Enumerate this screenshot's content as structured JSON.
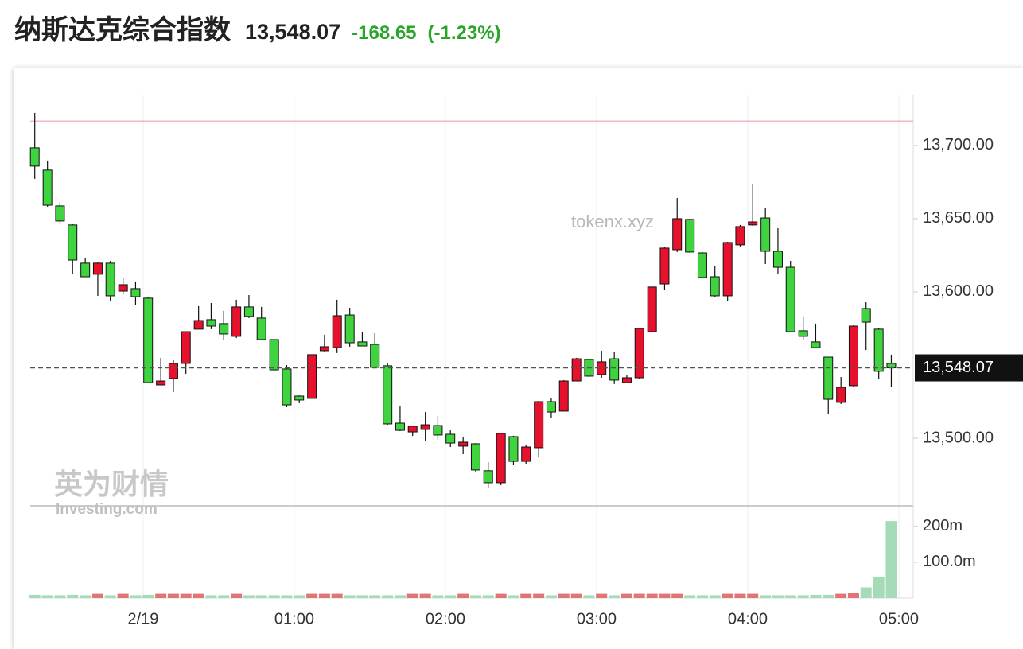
{
  "header": {
    "title": "纳斯达克综合指数",
    "change": "-168.65",
    "change_pct": "(-1.23%)"
  },
  "chart_data": {
    "type": "candlestick",
    "watermarks": [
      "tokenx.xyz",
      "英为财情",
      "Investing.com"
    ],
    "up_color": "#e8112d",
    "down_color": "#3fd33f",
    "volume_up_color": "#e07575",
    "volume_down_color": "#a6dbb8",
    "last": {
      "value": 13548.07,
      "label": "13,548.07"
    },
    "reference_line": 13716.72,
    "reference_color": "#f2a0a8",
    "xlim": [
      -0.747,
      5.095
    ],
    "xticks": [
      {
        "value": 0,
        "label": "2/19"
      },
      {
        "value": 1,
        "label": "01:00"
      },
      {
        "value": 2,
        "label": "02:00"
      },
      {
        "value": 3,
        "label": "03:00"
      },
      {
        "value": 4,
        "label": "04:00"
      },
      {
        "value": 5,
        "label": "05:00"
      }
    ],
    "ylim": [
      13453.8,
      13734.2
    ],
    "yticks": [
      {
        "value": 13500,
        "label": "13,500.00"
      },
      {
        "value": 13600,
        "label": "13,600.00"
      },
      {
        "value": 13650,
        "label": "13,650.00"
      },
      {
        "value": 13700,
        "label": "13,700.00"
      }
    ],
    "volume_ylim": [
      0,
      253000000
    ],
    "volume_ticks": [
      {
        "value": 100000000,
        "label": "100.0m"
      },
      {
        "value": 200000000,
        "label": "200m"
      }
    ],
    "x": [
      -0.717,
      -0.633,
      -0.55,
      -0.467,
      -0.383,
      -0.3,
      -0.217,
      -0.133,
      -0.05,
      0.033,
      0.117,
      0.2,
      0.283,
      0.367,
      0.45,
      0.533,
      0.617,
      0.7,
      0.783,
      0.867,
      0.95,
      1.033,
      1.117,
      1.2,
      1.283,
      1.367,
      1.45,
      1.533,
      1.617,
      1.7,
      1.783,
      1.867,
      1.95,
      2.033,
      2.117,
      2.2,
      2.283,
      2.367,
      2.45,
      2.533,
      2.617,
      2.7,
      2.783,
      2.867,
      2.95,
      3.033,
      3.117,
      3.2,
      3.283,
      3.367,
      3.45,
      3.533,
      3.617,
      3.7,
      3.783,
      3.867,
      3.95,
      4.033,
      4.117,
      4.2,
      4.283,
      4.367,
      4.45,
      4.533,
      4.617,
      4.7,
      4.783,
      4.867,
      4.95
    ],
    "open": [
      13698.4,
      13683.2,
      13658.7,
      13645.7,
      13619.6,
      13612.0,
      13619.6,
      13600.5,
      13602.2,
      13595.7,
      13536.4,
      13540.8,
      13551.1,
      13574.5,
      13581.0,
      13578.3,
      13569.6,
      13589.7,
      13582.1,
      13567.4,
      13547.3,
      13528.8,
      13527.2,
      13559.8,
      13561.9,
      13584.2,
      13565.8,
      13564.1,
      13549.5,
      13510.3,
      13504.3,
      13506.0,
      13508.7,
      13502.7,
      13494.6,
      13496.2,
      13477.8,
      13469.6,
      13501.1,
      13484.2,
      13493.5,
      13525.0,
      13518.5,
      13539.1,
      13553.8,
      13543.5,
      13554.3,
      13538.0,
      13541.3,
      13572.8,
      13605.4,
      13628.8,
      13649.5,
      13626.6,
      13610.3,
      13597.3,
      13632.1,
      13645.7,
      13650.5,
      13627.7,
      13616.8,
      13573.4,
      13565.8,
      13555.4,
      13524.5,
      13535.9,
      13588.6,
      13574.5,
      13551.1
    ],
    "high": [
      13722.3,
      13689.7,
      13661.4,
      13646.2,
      13622.8,
      13620.1,
      13621.2,
      13609.8,
      13607.1,
      13596.2,
      13554.9,
      13553.3,
      13572.8,
      13590.2,
      13592.4,
      13587.0,
      13594.6,
      13597.8,
      13589.7,
      13567.4,
      13550.0,
      13529.3,
      13557.1,
      13570.7,
      13594.6,
      13589.1,
      13572.3,
      13571.7,
      13551.1,
      13521.7,
      13508.7,
      13517.9,
      13515.2,
      13505.4,
      13501.1,
      13496.7,
      13483.7,
      13503.3,
      13501.6,
      13495.1,
      13525.5,
      13527.2,
      13539.7,
      13554.9,
      13554.3,
      13559.8,
      13559.2,
      13542.9,
      13575.5,
      13603.8,
      13630.4,
      13664.1,
      13650.0,
      13627.2,
      13617.4,
      13634.2,
      13645.7,
      13673.9,
      13657.1,
      13643.5,
      13621.2,
      13583.2,
      13578.3,
      13555.4,
      13541.8,
      13577.2,
      13592.9,
      13575.0,
      13557.1
    ],
    "low": [
      13677.2,
      13658.2,
      13646.2,
      13612.0,
      13610.3,
      13597.3,
      13594.0,
      13598.4,
      13591.3,
      13538.0,
      13536.4,
      13531.5,
      13544.0,
      13574.5,
      13574.5,
      13566.8,
      13568.5,
      13582.1,
      13566.8,
      13546.2,
      13521.2,
      13523.9,
      13527.2,
      13559.2,
      13558.2,
      13562.5,
      13563.0,
      13547.8,
      13509.2,
      13504.9,
      13501.6,
      13497.8,
      13498.9,
      13494.0,
      13489.1,
      13477.2,
      13465.8,
      13467.9,
      13481.5,
      13482.6,
      13486.9,
      13513.6,
      13518.5,
      13539.1,
      13541.8,
      13541.3,
      13537.0,
      13537.5,
      13540.2,
      13572.8,
      13601.1,
      13627.2,
      13626.6,
      13609.8,
      13596.7,
      13593.5,
      13631.0,
      13645.1,
      13619.0,
      13612.5,
      13572.8,
      13566.8,
      13561.9,
      13516.8,
      13523.4,
      13535.3,
      13560.3,
      13540.2,
      13534.8
    ],
    "close": [
      13685.9,
      13659.2,
      13648.4,
      13621.7,
      13610.3,
      13619.6,
      13597.3,
      13604.9,
      13596.7,
      13538.0,
      13539.1,
      13551.1,
      13572.8,
      13580.4,
      13576.6,
      13571.2,
      13589.7,
      13583.2,
      13567.4,
      13546.7,
      13522.8,
      13526.1,
      13557.1,
      13562.5,
      13583.7,
      13565.2,
      13563.0,
      13548.4,
      13509.8,
      13505.4,
      13508.2,
      13509.2,
      13502.2,
      13496.7,
      13497.3,
      13478.3,
      13469.6,
      13503.3,
      13484.2,
      13494.0,
      13525.0,
      13517.9,
      13539.1,
      13554.3,
      13542.4,
      13552.2,
      13539.7,
      13541.3,
      13575.0,
      13603.3,
      13629.9,
      13650.0,
      13627.2,
      13609.8,
      13597.3,
      13633.7,
      13644.6,
      13647.8,
      13627.7,
      13616.8,
      13572.8,
      13569.6,
      13561.9,
      13526.6,
      13534.8,
      13576.6,
      13579.3,
      13545.7,
      13548.07
    ],
    "volume": [
      9000000,
      8000000,
      8000000,
      9000000,
      8000000,
      12000000,
      8000000,
      12000000,
      8000000,
      9000000,
      12000000,
      12000000,
      12000000,
      12000000,
      8000000,
      8000000,
      12000000,
      8000000,
      8000000,
      8000000,
      8000000,
      8000000,
      12000000,
      12000000,
      12000000,
      8000000,
      8000000,
      8000000,
      8000000,
      8000000,
      12000000,
      12000000,
      8000000,
      8000000,
      12000000,
      8000000,
      8000000,
      12000000,
      8000000,
      12000000,
      12000000,
      8000000,
      12000000,
      12000000,
      8000000,
      12000000,
      8000000,
      12000000,
      12000000,
      12000000,
      12000000,
      12000000,
      8000000,
      8000000,
      8000000,
      12000000,
      12000000,
      12000000,
      8000000,
      8000000,
      8000000,
      8000000,
      9000000,
      9000000,
      12000000,
      14000000,
      30000000,
      60000000,
      215000000
    ]
  }
}
